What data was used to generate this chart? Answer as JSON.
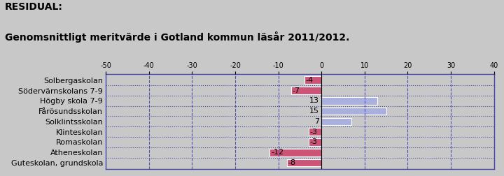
{
  "title_line1": "RESIDUAL:",
  "title_line2": "Genomsnittligt meritvärde i Gotland kommun läsår 2011/2012.",
  "schools": [
    "Solbergaskolan",
    "Södervärnskolans 7-9",
    "Högby skola 7-9",
    "Fårösundsskolan",
    "Solklintsskolan",
    "Klinteskolan",
    "Romaskolan",
    "Atheneskolan",
    "Guteskolan, grundskola"
  ],
  "values": [
    -4,
    -7,
    13,
    15,
    7,
    -3,
    -3,
    -12,
    -8
  ],
  "xlim": [
    -50,
    40
  ],
  "xticks": [
    -50,
    -40,
    -30,
    -20,
    -10,
    0,
    10,
    20,
    30,
    40
  ],
  "bar_color_positive": "#aab0dd",
  "bar_color_negative": "#cc5577",
  "bg_color": "#c8c8c8",
  "plot_bg_color": "#c8c8c8",
  "grid_color": "#4444aa",
  "border_color": "#4444aa",
  "label_fontsize": 8,
  "value_fontsize": 8,
  "tick_fontsize": 7,
  "title_fontsize_line1": 10,
  "title_fontsize_line2": 10
}
